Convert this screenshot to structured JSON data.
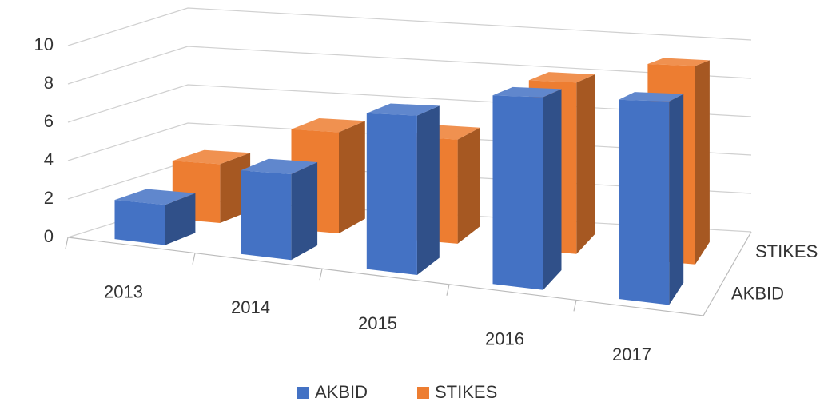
{
  "chart_data": {
    "type": "bar",
    "categories": [
      "2013",
      "2014",
      "2015",
      "2016",
      "2017"
    ],
    "series": [
      {
        "name": "AKBID",
        "color": "#4472c4",
        "values": [
          2,
          4,
          7,
          8,
          8
        ]
      },
      {
        "name": "STIKES",
        "color": "#ed7d31",
        "values": [
          3,
          5,
          5,
          8,
          9
        ]
      }
    ],
    "ylim": [
      0,
      10
    ],
    "yticks": [
      0,
      2,
      4,
      6,
      8,
      10
    ],
    "grid": true,
    "legend": "bottom"
  }
}
